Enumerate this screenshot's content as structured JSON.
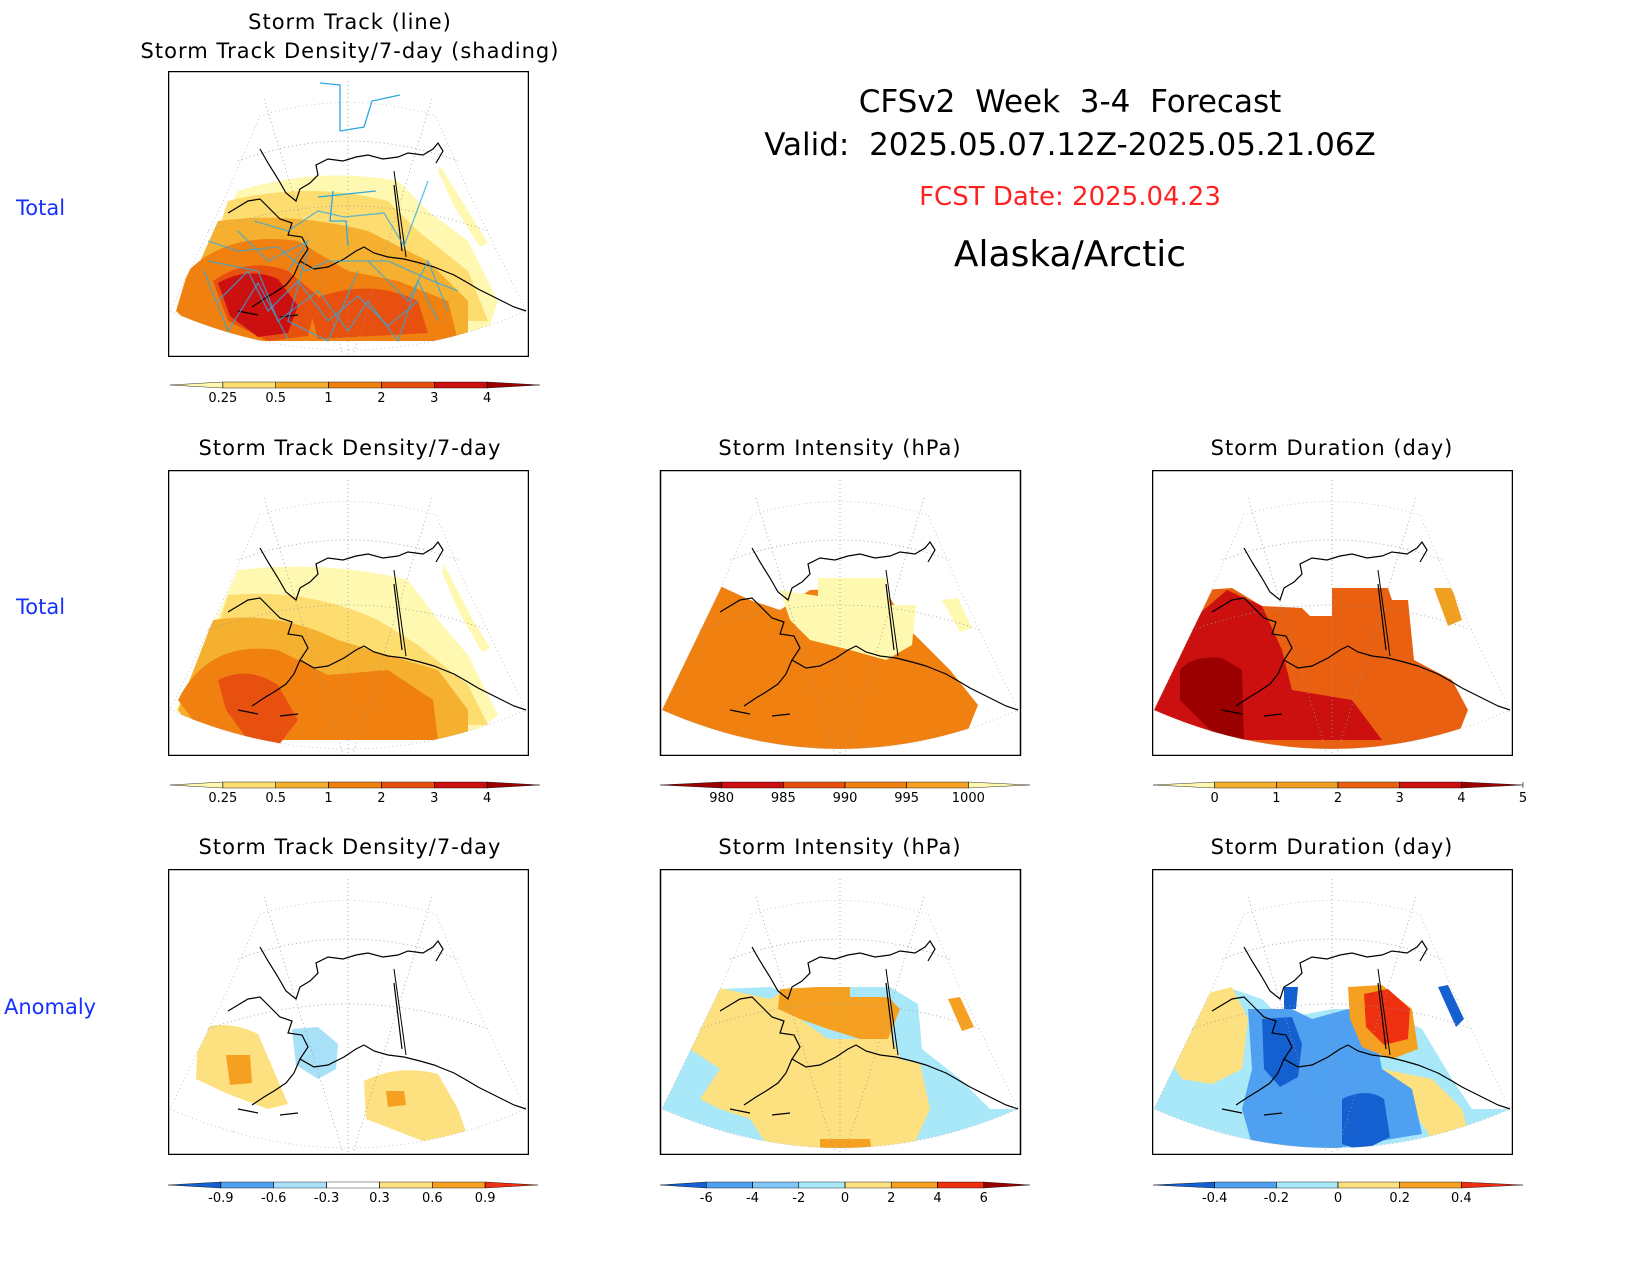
{
  "header": {
    "title_line1": "CFSv2  Week  3-4  Forecast",
    "title_line2": "Valid:  2025.05.07.12Z-2025.05.21.06Z",
    "fcst_date": "FCST Date: 2025.04.23",
    "region": "Alaska/Arctic"
  },
  "colors": {
    "row_label": "#1530ff",
    "fcst_date": "#ff2020"
  },
  "rows": {
    "row1_label": "Total",
    "row2_label": "Total",
    "row3_label": "Anomaly"
  },
  "chart_data": [
    {
      "id": "p1",
      "type": "heatmap",
      "title_line1": "Storm Track (line)",
      "title_line2": "Storm Track Density/7-day (shading)",
      "colorbar": {
        "ticks": [
          "0.25",
          "0.5",
          "1",
          "2",
          "3",
          "4"
        ],
        "colors": [
          "#fff8b0",
          "#fddc70",
          "#f5b030",
          "#f08010",
          "#e85010",
          "#cc1010",
          "#9a0000"
        ]
      }
    },
    {
      "id": "p2",
      "type": "heatmap",
      "title": "Storm Track Density/7-day",
      "colorbar": {
        "ticks": [
          "0.25",
          "0.5",
          "1",
          "2",
          "3",
          "4"
        ],
        "colors": [
          "#fff8b0",
          "#fddc70",
          "#f5b030",
          "#f08010",
          "#e85010",
          "#cc1010",
          "#9a0000"
        ]
      }
    },
    {
      "id": "p3",
      "type": "heatmap",
      "title": "Storm Intensity (hPa)",
      "colorbar": {
        "ticks": [
          "980",
          "985",
          "990",
          "995",
          "1000"
        ],
        "colors": [
          "#9a0000",
          "#cc1010",
          "#e85010",
          "#f08010",
          "#f5a020",
          "#fff8b0"
        ]
      }
    },
    {
      "id": "p4",
      "type": "heatmap",
      "title": "Storm Duration (day)",
      "colorbar": {
        "ticks": [
          "0",
          "1",
          "2",
          "3",
          "4",
          "5"
        ],
        "colors": [
          "#fff8b0",
          "#f5b030",
          "#f0a020",
          "#e86010",
          "#cc1010",
          "#9a0000"
        ]
      }
    },
    {
      "id": "p5",
      "type": "heatmap",
      "title": "Storm Track Density/7-day",
      "colorbar": {
        "ticks": [
          "-0.9",
          "-0.6",
          "-0.3",
          "0.3",
          "0.6",
          "0.9"
        ],
        "colors": [
          "#1560d0",
          "#4fa0f0",
          "#a8e0f8",
          "#ffffff",
          "#fde080",
          "#f5a020",
          "#ee3010"
        ]
      }
    },
    {
      "id": "p6",
      "type": "heatmap",
      "title": "Storm Intensity (hPa)",
      "colorbar": {
        "ticks": [
          "-6",
          "-4",
          "-2",
          "0",
          "2",
          "4",
          "6"
        ],
        "colors": [
          "#1560d0",
          "#4fa0f0",
          "#80c8f8",
          "#a8e8f8",
          "#fde080",
          "#f5a020",
          "#ee3010",
          "#9a0000"
        ]
      }
    },
    {
      "id": "p7",
      "type": "heatmap",
      "title": "Storm Duration (day)",
      "colorbar": {
        "ticks": [
          "-0.4",
          "-0.2",
          "0",
          "0.2",
          "0.4"
        ],
        "colors": [
          "#1560d0",
          "#4fa0f0",
          "#a8e8f8",
          "#fde080",
          "#f5a020",
          "#ee3010"
        ]
      }
    }
  ]
}
